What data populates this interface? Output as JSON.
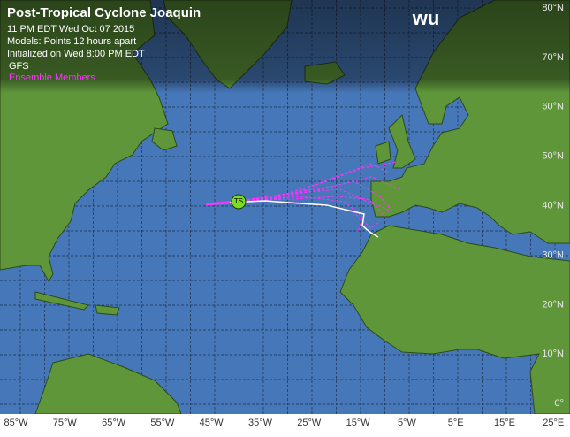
{
  "header": {
    "title": "Post-Tropical Cyclone Joaquin",
    "lines": [
      "11 PM EDT Wed Oct 07 2015",
      "Models:  Points 12 hours apart",
      "Initialized on Wed 8:00 PM EDT"
    ]
  },
  "legend": [
    "GFS",
    "Ensemble Members"
  ],
  "logo": "wu",
  "storm_marker": "TS",
  "axes": {
    "lon_labels": [
      "85°W",
      "75°W",
      "65°W",
      "55°W",
      "45°W",
      "35°W",
      "25°W",
      "15°W",
      "5°W",
      "5°E",
      "15°E",
      "25°E"
    ],
    "lat_labels": [
      "80°N",
      "70°N",
      "60°N",
      "50°N",
      "40°N",
      "30°N",
      "20°N",
      "10°N",
      "0°"
    ]
  }
}
